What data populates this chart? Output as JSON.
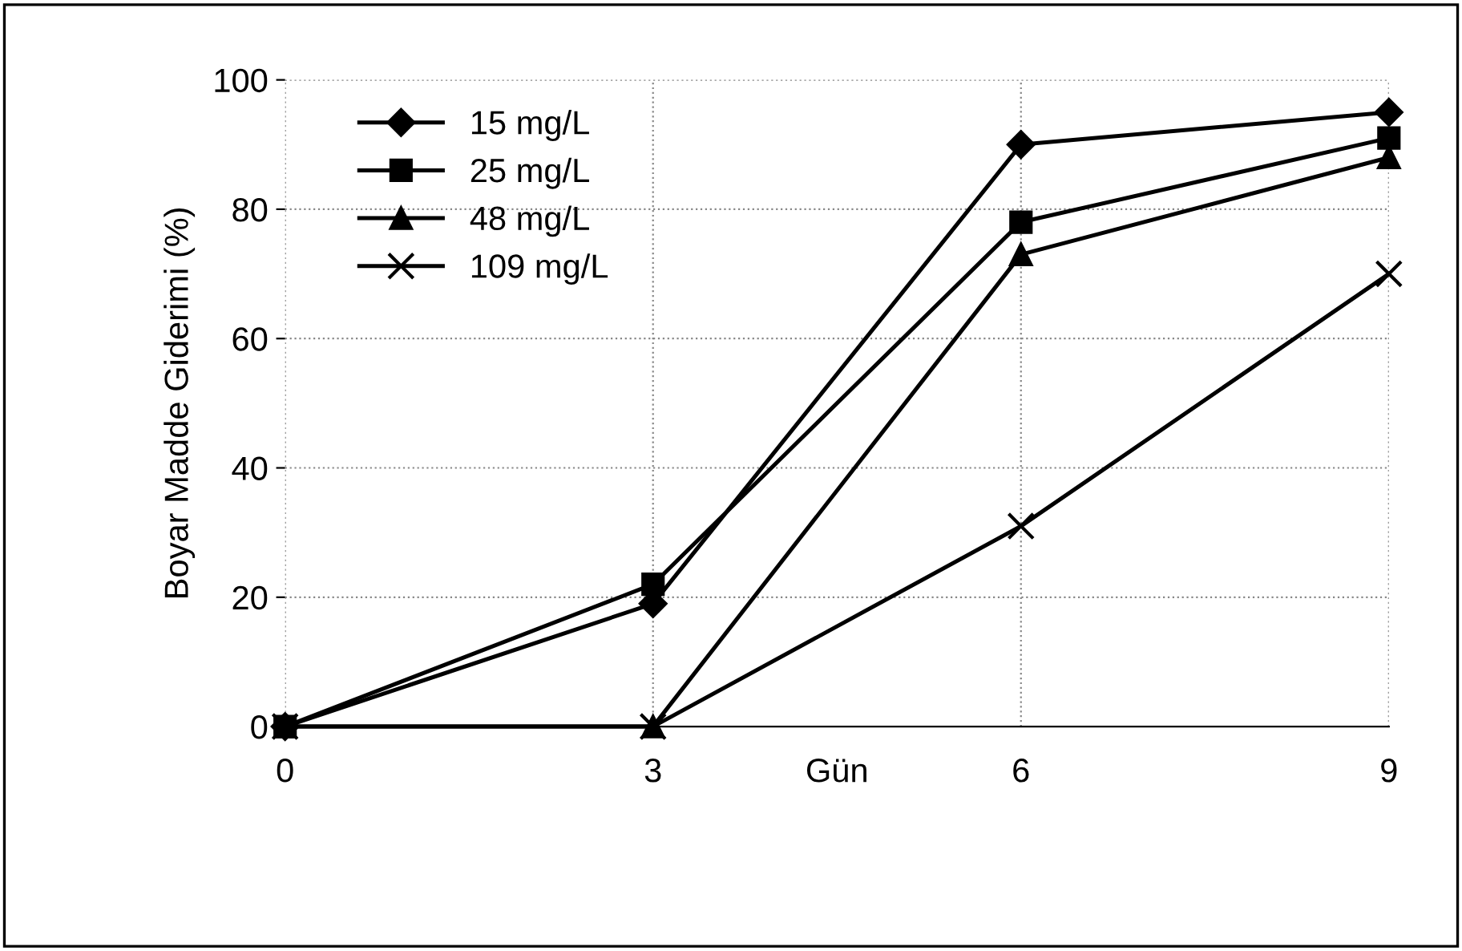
{
  "chart_data": {
    "type": "line",
    "xlabel": "Gün",
    "ylabel": "Boyar Madde Giderimi (%)",
    "x": [
      0,
      3,
      6,
      9
    ],
    "xlim": [
      0,
      9
    ],
    "xticks": [
      0,
      3,
      6,
      9
    ],
    "ylim": [
      0,
      100
    ],
    "yticks": [
      0,
      20,
      40,
      60,
      80,
      100
    ],
    "grid": true,
    "legend": "top left",
    "line_style": "solid",
    "series": [
      {
        "name": "15 mg/L",
        "color": "#000000",
        "marker": "diamond",
        "values": [
          0,
          19,
          90,
          95
        ]
      },
      {
        "name": "25 mg/L",
        "color": "#000000",
        "marker": "square",
        "values": [
          0,
          22,
          78,
          91
        ]
      },
      {
        "name": "48 mg/L",
        "color": "#000000",
        "marker": "triangle",
        "values": [
          0,
          0,
          73,
          88
        ]
      },
      {
        "name": "109 mg/L",
        "color": "#000000",
        "marker": "cross",
        "values": [
          0,
          0,
          31,
          70
        ]
      }
    ]
  }
}
